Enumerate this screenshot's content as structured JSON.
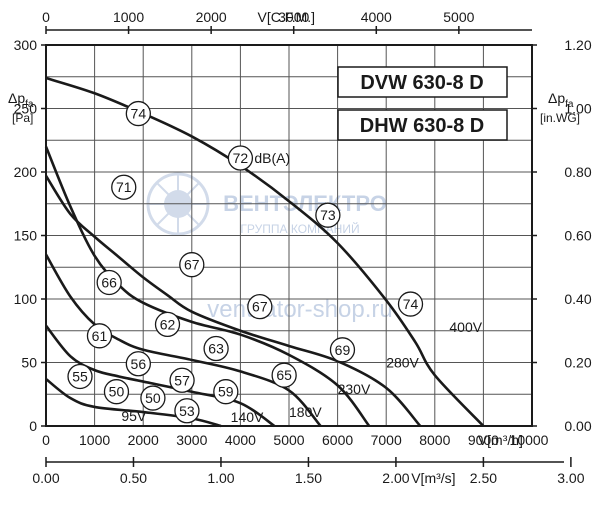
{
  "chart_data": {
    "type": "line",
    "models": [
      "DVW 630-8 D",
      "DHW 630-8 D"
    ],
    "axes": {
      "x_main": {
        "label": "V[m³/h]",
        "range": [
          0,
          10000
        ],
        "ticks": [
          "0",
          "1000",
          "2000",
          "3000",
          "4000",
          "5000",
          "6000",
          "7000",
          "8000",
          "9000",
          "10000"
        ]
      },
      "x_top": {
        "label": "V[C.F.M.]",
        "ticks": [
          "0",
          "1000",
          "2000",
          "3000",
          "4000",
          "5000"
        ]
      },
      "x_bottom": {
        "label": "V[m³/s]",
        "ticks": [
          "0.00",
          "0.50",
          "1.00",
          "1.50",
          "2.00",
          "2.50",
          "3.00"
        ]
      },
      "y_left": {
        "label": "Δp",
        "sub": "fa",
        "unit": "[Pa]",
        "range": [
          0,
          300
        ],
        "ticks": [
          "0",
          "50",
          "100",
          "150",
          "200",
          "250",
          "300"
        ]
      },
      "y_right": {
        "label": "Δp",
        "sub": "fa",
        "unit": "[in.WG]",
        "ticks": [
          "0.00",
          "0.20",
          "0.40",
          "0.60",
          "0.80",
          "1.00",
          "1.20"
        ]
      }
    },
    "grid": true,
    "series": [
      {
        "name": "400V",
        "x": [
          0,
          1000,
          2000,
          3000,
          4000,
          5000,
          6000,
          7000,
          7600,
          8000,
          9000
        ],
        "y": [
          274,
          262,
          246,
          228,
          205,
          177,
          144,
          99,
          66,
          40,
          0
        ]
      },
      {
        "name": "280V",
        "x": [
          0,
          500,
          1000,
          1500,
          2000,
          2500,
          3000,
          4000,
          5000,
          6000,
          7000,
          7700
        ],
        "y": [
          197,
          167,
          149,
          133,
          117,
          103,
          90,
          75,
          63,
          51,
          30,
          0
        ]
      },
      {
        "name": "230V",
        "x": [
          0,
          500,
          1000,
          1500,
          2000,
          3000,
          4000,
          5000,
          6000,
          6650
        ],
        "y": [
          220,
          173,
          134,
          111,
          97,
          82,
          72,
          56,
          32,
          0
        ]
      },
      {
        "name": "180V",
        "x": [
          0,
          500,
          1000,
          1500,
          2000,
          3000,
          4000,
          5000,
          5650
        ],
        "y": [
          135,
          102,
          80,
          68,
          60,
          52,
          43,
          28,
          0
        ]
      },
      {
        "name": "140V",
        "x": [
          0,
          500,
          1000,
          1500,
          2000,
          3000,
          4000,
          4700
        ],
        "y": [
          79,
          55,
          44,
          39,
          35,
          27,
          18,
          0
        ]
      },
      {
        "name": "95V",
        "x": [
          0,
          500,
          1000,
          2000,
          3000,
          3600
        ],
        "y": [
          37,
          22,
          15,
          11,
          6,
          0
        ]
      }
    ],
    "noise_levels": {
      "unit": "dB(A)",
      "points": [
        {
          "value": "74",
          "x": 1900,
          "y": 246
        },
        {
          "value": "72",
          "x": 4000,
          "y": 211
        },
        {
          "value": "73",
          "x": 5800,
          "y": 166
        },
        {
          "value": "74",
          "x": 7500,
          "y": 96
        },
        {
          "value": "71",
          "x": 1600,
          "y": 188
        },
        {
          "value": "67",
          "x": 3000,
          "y": 127
        },
        {
          "value": "67",
          "x": 4400,
          "y": 94
        },
        {
          "value": "69",
          "x": 6100,
          "y": 60
        },
        {
          "value": "66",
          "x": 1300,
          "y": 113
        },
        {
          "value": "62",
          "x": 2500,
          "y": 80
        },
        {
          "value": "63",
          "x": 3500,
          "y": 61
        },
        {
          "value": "65",
          "x": 4900,
          "y": 40
        },
        {
          "value": "61",
          "x": 1100,
          "y": 71
        },
        {
          "value": "56",
          "x": 1900,
          "y": 49
        },
        {
          "value": "57",
          "x": 2800,
          "y": 36
        },
        {
          "value": "59",
          "x": 3700,
          "y": 27
        },
        {
          "value": "55",
          "x": 700,
          "y": 39
        },
        {
          "value": "50",
          "x": 1450,
          "y": 27
        },
        {
          "value": "50",
          "x": 2200,
          "y": 22
        },
        {
          "value": "53",
          "x": 2900,
          "y": 12
        }
      ]
    },
    "voltage_labels": [
      {
        "name": "400V",
        "x": 8300,
        "y": 78
      },
      {
        "name": "280V",
        "x": 7000,
        "y": 50
      },
      {
        "name": "230V",
        "x": 6000,
        "y": 29
      },
      {
        "name": "180V",
        "x": 5000,
        "y": 11
      },
      {
        "name": "140V",
        "x": 3800,
        "y": 7
      },
      {
        "name": "95V",
        "x": 1550,
        "y": 8
      }
    ]
  },
  "watermark": {
    "brand": "ВЕНТЭЛЕКТРО",
    "sub": "ГРУППА КОМПАНИЙ",
    "url": "ventilator-shop.ru"
  },
  "colors": {
    "curve": "#1a1a1a",
    "grid": "#555555",
    "frame": "#1a1a1a",
    "watermark": "#c7d3e6"
  }
}
